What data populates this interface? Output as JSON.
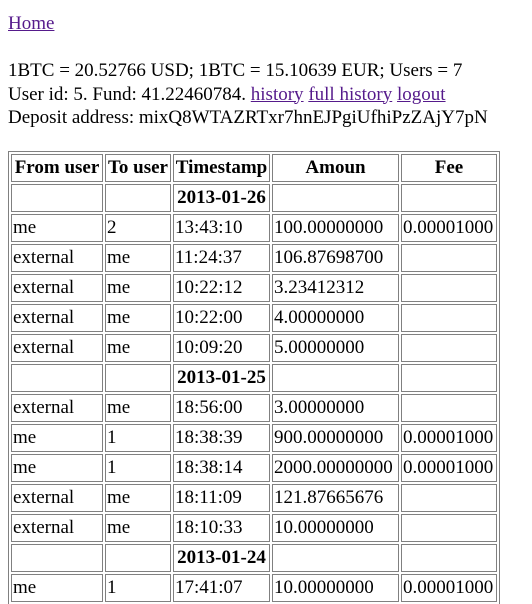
{
  "nav": {
    "home_label": "Home"
  },
  "info": {
    "rates_text": "1BTC = 20.52766 USD; 1BTC = 15.10639 EUR; Users = 7",
    "user_text": "User id: 5. Fund: 41.22460784.",
    "history_label": "history",
    "full_history_label": "full history",
    "logout_label": "logout",
    "deposit_text": "Deposit address: mixQ8WTAZRTxr7hnEJPgiUfhiPzZAjY7pN"
  },
  "table": {
    "headers": [
      "From user",
      "To user",
      "Timestamp",
      "Amoun",
      "Fee"
    ],
    "groups": [
      {
        "date": "2013-01-26",
        "rows": [
          [
            "me",
            "2",
            "13:43:10",
            "100.00000000",
            "0.00001000"
          ],
          [
            "external",
            "me",
            "11:24:37",
            "106.87698700",
            ""
          ],
          [
            "external",
            "me",
            "10:22:12",
            "3.23412312",
            ""
          ],
          [
            "external",
            "me",
            "10:22:00",
            "4.00000000",
            ""
          ],
          [
            "external",
            "me",
            "10:09:20",
            "5.00000000",
            ""
          ]
        ]
      },
      {
        "date": "2013-01-25",
        "rows": [
          [
            "external",
            "me",
            "18:56:00",
            "3.00000000",
            ""
          ],
          [
            "me",
            "1",
            "18:38:39",
            "900.00000000",
            "0.00001000"
          ],
          [
            "me",
            "1",
            "18:38:14",
            "2000.00000000",
            "0.00001000"
          ],
          [
            "external",
            "me",
            "18:11:09",
            "121.87665676",
            ""
          ],
          [
            "external",
            "me",
            "18:10:33",
            "10.00000000",
            ""
          ]
        ]
      },
      {
        "date": "2013-01-24",
        "rows": [
          [
            "me",
            "1",
            "17:41:07",
            "10.00000000",
            "0.00001000"
          ]
        ]
      }
    ]
  }
}
